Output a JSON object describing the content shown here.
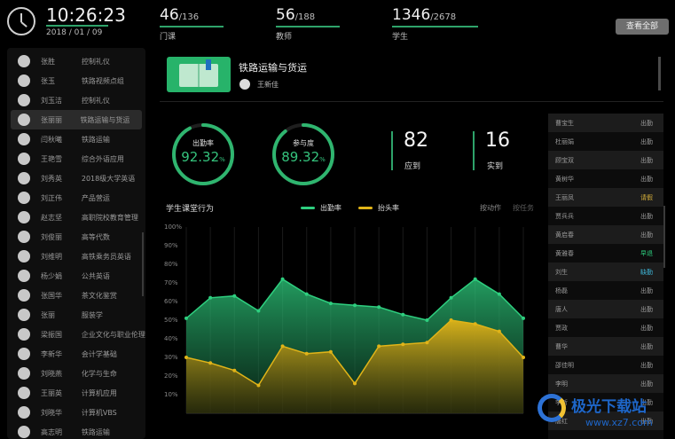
{
  "header": {
    "time": "10:26:23",
    "date": "2018 / 01 / 09",
    "stats": [
      {
        "value": "46",
        "total": "/136",
        "label": "门课"
      },
      {
        "value": "56",
        "total": "/188",
        "label": "教师"
      },
      {
        "value": "1346",
        "total": "/2678",
        "label": "学生"
      }
    ],
    "view_all_label": "查看全部"
  },
  "students": [
    {
      "name": "张胜",
      "course": "控制礼仪"
    },
    {
      "name": "张玉",
      "course": "铁路视频点组"
    },
    {
      "name": "刘玉洁",
      "course": "控制礼仪"
    },
    {
      "name": "张丽丽",
      "course": "铁路运输与货运"
    },
    {
      "name": "闫秋曦",
      "course": "铁路运输"
    },
    {
      "name": "王艳雪",
      "course": "综合外语应用"
    },
    {
      "name": "刘秀英",
      "course": "2018级大学英语"
    },
    {
      "name": "刘正伟",
      "course": "产品营运"
    },
    {
      "name": "赵志坚",
      "course": "高职院校教育管理"
    },
    {
      "name": "刘俊丽",
      "course": "高等代数"
    },
    {
      "name": "刘维明",
      "course": "高铁乘务员英语"
    },
    {
      "name": "杨少娟",
      "course": "公共英语"
    },
    {
      "name": "张国华",
      "course": "茶文化鉴赏"
    },
    {
      "name": "张丽",
      "course": "服装学"
    },
    {
      "name": "梁振国",
      "course": "企业文化与职业伦理"
    },
    {
      "name": "李新华",
      "course": "会计学基础"
    },
    {
      "name": "刘晓燕",
      "course": "化学与生命"
    },
    {
      "name": "王丽英",
      "course": "计算机应用"
    },
    {
      "name": "刘晓华",
      "course": "计算机VBS"
    },
    {
      "name": "高志明",
      "course": "铁路运输"
    }
  ],
  "course": {
    "title": "铁路运输与货运",
    "teacher": "王新佳"
  },
  "gauges": {
    "attendance": {
      "label": "出勤率",
      "value": "92.32",
      "unit": "%",
      "fraction": 0.9232
    },
    "participation": {
      "label": "参与度",
      "value": "89.32",
      "unit": "%",
      "fraction": 0.8932
    }
  },
  "kpis": {
    "expected": {
      "value": "82",
      "label": "应到"
    },
    "actual": {
      "value": "16",
      "label": "实到"
    }
  },
  "chart_panel": {
    "title": "学生课堂行为",
    "tab_action": "按动作",
    "tab_task": "按任务"
  },
  "chart_data": {
    "type": "area",
    "title": "学生课堂行为",
    "y_ticks": [
      "100%",
      "90%",
      "80%",
      "70%",
      "60%",
      "50%",
      "40%",
      "30%",
      "20%",
      "10%"
    ],
    "ylim": [
      0,
      100
    ],
    "series": [
      {
        "name": "出勤率",
        "color": "#2ecf7f",
        "values": [
          51,
          62,
          63,
          55,
          72,
          64,
          59,
          58,
          57,
          53,
          50,
          62,
          72,
          64,
          51
        ]
      },
      {
        "name": "抬头率",
        "color": "#e1b418",
        "values": [
          30,
          27,
          23,
          15,
          36,
          32,
          33,
          16,
          36,
          37,
          38,
          50,
          48,
          44,
          30
        ]
      }
    ]
  },
  "roster": [
    {
      "name": "曹宝生",
      "status": "出勤",
      "color": "#9a9a9a"
    },
    {
      "name": "杜丽娟",
      "status": "出勤",
      "color": "#9a9a9a"
    },
    {
      "name": "顾宝双",
      "status": "出勤",
      "color": "#9a9a9a"
    },
    {
      "name": "黄树华",
      "status": "出勤",
      "color": "#9a9a9a"
    },
    {
      "name": "王丽凤",
      "status": "请假",
      "color": "#d8b13a"
    },
    {
      "name": "贾兵兵",
      "status": "出勤",
      "color": "#9a9a9a"
    },
    {
      "name": "黄启春",
      "status": "出勤",
      "color": "#9a9a9a"
    },
    {
      "name": "黄雅春",
      "status": "早退",
      "color": "#2ecf7f"
    },
    {
      "name": "刘生",
      "status": "缺勤",
      "color": "#3fb7d9"
    },
    {
      "name": "杨磊",
      "status": "出勤",
      "color": "#9a9a9a"
    },
    {
      "name": "唐人",
      "status": "出勤",
      "color": "#9a9a9a"
    },
    {
      "name": "贾政",
      "status": "出勤",
      "color": "#9a9a9a"
    },
    {
      "name": "曹华",
      "status": "出勤",
      "color": "#9a9a9a"
    },
    {
      "name": "邵佳明",
      "status": "出勤",
      "color": "#9a9a9a"
    },
    {
      "name": "李明",
      "status": "出勤",
      "color": "#9a9a9a"
    },
    {
      "name": "李新",
      "status": "出勤",
      "color": "#9a9a9a"
    },
    {
      "name": "唐红",
      "status": "出勤",
      "color": "#9a9a9a"
    }
  ],
  "watermark": {
    "text": "极光下载站",
    "url": "www.xz7.com"
  }
}
